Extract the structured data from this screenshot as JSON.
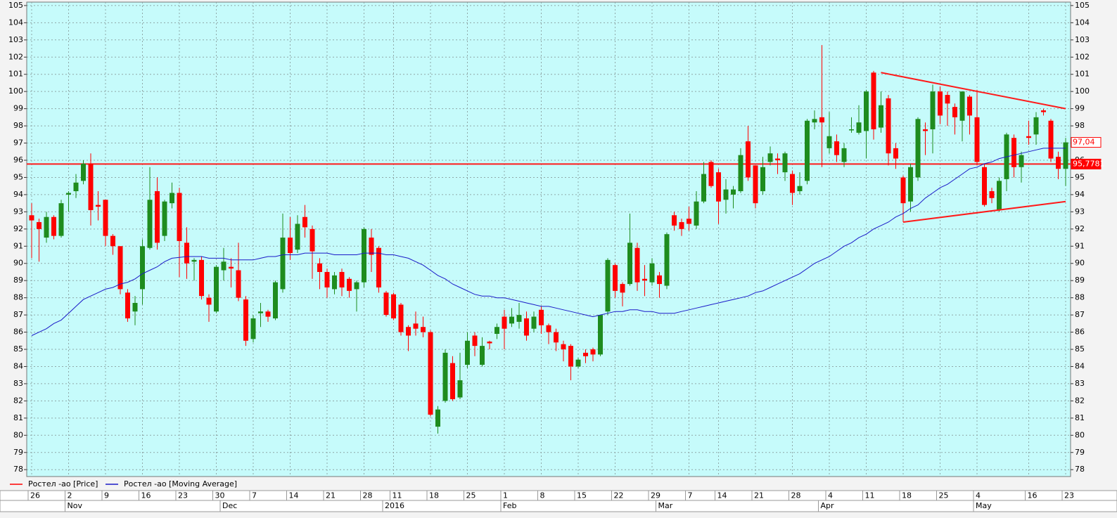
{
  "chart_data": {
    "type": "candlestick",
    "categories": [
      "26",
      null,
      null,
      null,
      null,
      "2",
      null,
      null,
      null,
      null,
      "9",
      null,
      null,
      null,
      null,
      "16",
      null,
      null,
      null,
      null,
      "23",
      null,
      null,
      null,
      null,
      "30",
      null,
      null,
      null,
      null,
      "7",
      null,
      null,
      null,
      null,
      "14",
      null,
      null,
      null,
      null,
      "21",
      null,
      null,
      null,
      null,
      "28",
      null,
      null,
      null,
      "11",
      null,
      null,
      null,
      null,
      "18",
      null,
      null,
      null,
      null,
      "25",
      null,
      null,
      null,
      null,
      "1",
      null,
      null,
      null,
      null,
      "8",
      null,
      null,
      null,
      null,
      "15",
      null,
      null,
      null,
      null,
      "22",
      null,
      null,
      null,
      null,
      "29",
      null,
      null,
      null,
      null,
      "7",
      null,
      null,
      null,
      "14",
      null,
      null,
      null,
      null,
      "21",
      null,
      null,
      null,
      null,
      "28",
      null,
      null,
      null,
      null,
      "4",
      null,
      null,
      null,
      null,
      "11",
      null,
      null,
      null,
      null,
      "18",
      null,
      null,
      null,
      null,
      "25",
      null,
      null,
      null,
      null,
      "4",
      null,
      null,
      null,
      null,
      null,
      null,
      "16",
      null,
      null,
      null,
      null,
      "23"
    ],
    "months": [
      null,
      null,
      null,
      null,
      null,
      "Nov",
      null,
      null,
      null,
      null,
      null,
      null,
      null,
      null,
      null,
      null,
      null,
      null,
      null,
      null,
      null,
      null,
      null,
      null,
      null,
      null,
      "Dec",
      null,
      null,
      null,
      null,
      null,
      null,
      null,
      null,
      null,
      null,
      null,
      null,
      null,
      null,
      null,
      null,
      null,
      null,
      null,
      null,
      null,
      "2016",
      null,
      null,
      null,
      null,
      null,
      null,
      null,
      null,
      null,
      null,
      null,
      null,
      null,
      null,
      null,
      "Feb",
      null,
      null,
      null,
      null,
      null,
      null,
      null,
      null,
      null,
      null,
      null,
      null,
      null,
      null,
      null,
      null,
      null,
      null,
      null,
      null,
      "Mar",
      null,
      null,
      null,
      null,
      null,
      null,
      null,
      null,
      null,
      null,
      null,
      null,
      null,
      null,
      null,
      null,
      null,
      null,
      null,
      null,
      null,
      "Apr",
      null,
      null,
      null,
      null,
      null,
      null,
      null,
      null,
      null,
      null,
      null,
      null,
      null,
      null,
      null,
      null,
      null,
      null,
      null,
      null,
      "May",
      null,
      null,
      null,
      null,
      null,
      null,
      null,
      null,
      null,
      null,
      null,
      null
    ],
    "series": [
      {
        "name": "Ростел -ао [Price]",
        "color": "#ff0000",
        "open": [
          92.8,
          92.4,
          91.5,
          92.7,
          91.6,
          94.0,
          94.2,
          94.8,
          95.8,
          93.4,
          93.7,
          91.6,
          91.0,
          88.3,
          87.2,
          88.5,
          90.9,
          94.2,
          91.6,
          93.5,
          94.1,
          91.2,
          90.1,
          90.2,
          88.0,
          87.2,
          89.6,
          89.8,
          89.6,
          87.9,
          85.6,
          87.1,
          87.2,
          86.8,
          88.5,
          91.5,
          90.8,
          92.7,
          92.0,
          90.0,
          89.5,
          88.5,
          89.5,
          89.1,
          88.5,
          88.9,
          91.5,
          90.9,
          88.3,
          88.2,
          87.6,
          86.3,
          86.5,
          86.3,
          86.0,
          80.5,
          82.0,
          84.2,
          82.2,
          84.1,
          85.8,
          84.1,
          85.45,
          85.9,
          86.9,
          86.5,
          86.6,
          86.8,
          86.2,
          87.3,
          86.4,
          86.0,
          85.3,
          85.2,
          84.0,
          84.8,
          85.0,
          84.7,
          87.2,
          89.9,
          88.8,
          88.8,
          90.9,
          89.1,
          88.9,
          89.3,
          88.7,
          92.8,
          92.4,
          92.6,
          92.2,
          93.6,
          95.9,
          95.3,
          93.7,
          94.0,
          94.2,
          97.1,
          95.7,
          94.2,
          95.9,
          96.1,
          95.3,
          95.2,
          94.2,
          94.8,
          98.2,
          98.5,
          96.7,
          97.1,
          95.9,
          97.75,
          97.6,
          97.7,
          101.1,
          97.9,
          99.6,
          96.7,
          95.0,
          93.6,
          95.0,
          97.8,
          97.8,
          100.0,
          99.8,
          99.1,
          98.3,
          99.7,
          98.5,
          95.6,
          94.2,
          93.1,
          94.9,
          97.3,
          95.6,
          97.4,
          97.5,
          98.9,
          98.3,
          96.2,
          95.5
        ],
        "high": [
          93.5,
          92.6,
          93.0,
          92.8,
          93.7,
          94.2,
          95.2,
          96.0,
          96.4,
          94.2,
          93.7,
          91.7,
          91.0,
          88.5,
          88.1,
          91.4,
          95.6,
          95.0,
          93.7,
          94.7,
          94.4,
          92.1,
          90.3,
          90.4,
          88.2,
          89.9,
          90.9,
          90.3,
          91.2,
          88.1,
          87.0,
          87.7,
          87.3,
          89.0,
          92.9,
          92.7,
          92.8,
          93.4,
          92.2,
          90.3,
          89.7,
          89.5,
          89.7,
          89.2,
          89.0,
          92.1,
          92.0,
          91.0,
          88.4,
          88.3,
          87.7,
          86.4,
          87.2,
          86.9,
          86.1,
          81.7,
          85.0,
          84.6,
          84.8,
          86.0,
          86.0,
          85.7,
          85.5,
          86.5,
          87.3,
          87.4,
          87.7,
          87.2,
          87.2,
          87.5,
          86.5,
          86.2,
          85.5,
          85.3,
          84.5,
          85.0,
          85.1,
          87.0,
          90.3,
          90.0,
          88.9,
          92.9,
          91.2,
          89.9,
          90.3,
          89.5,
          91.8,
          93.0,
          92.6,
          93.3,
          94.2,
          95.9,
          96.0,
          95.5,
          94.9,
          94.5,
          96.7,
          98.0,
          95.7,
          96.2,
          96.8,
          96.4,
          96.5,
          95.4,
          95.3,
          98.4,
          98.9,
          102.7,
          98.8,
          97.5,
          97.0,
          98.5,
          99.2,
          100.1,
          101.2,
          100.0,
          99.8,
          97.0,
          95.1,
          95.8,
          98.5,
          98.2,
          100.4,
          100.3,
          100.0,
          99.3,
          100.0,
          99.8,
          100.1,
          95.8,
          94.4,
          95.0,
          97.6,
          97.5,
          96.5,
          98.3,
          98.8,
          99.0,
          98.4,
          96.5,
          97.3
        ],
        "low": [
          90.3,
          90.1,
          91.2,
          91.4,
          91.5,
          93.0,
          93.8,
          94.6,
          92.2,
          92.5,
          91.0,
          90.5,
          88.2,
          86.6,
          86.4,
          87.6,
          90.8,
          90.8,
          91.3,
          93.2,
          89.2,
          89.1,
          89.0,
          87.9,
          86.6,
          87.1,
          89.0,
          88.6,
          87.8,
          85.2,
          85.4,
          86.3,
          86.6,
          86.7,
          88.3,
          90.2,
          90.6,
          91.5,
          89.1,
          88.5,
          88.0,
          88.2,
          88.1,
          88.0,
          87.2,
          88.6,
          89.5,
          88.3,
          86.9,
          86.7,
          85.8,
          84.9,
          85.8,
          85.7,
          81.1,
          80.1,
          81.9,
          82.0,
          82.1,
          83.9,
          84.6,
          84.0,
          85.0,
          85.6,
          85.0,
          86.3,
          86.2,
          85.5,
          86.0,
          85.9,
          85.3,
          84.9,
          84.3,
          83.2,
          83.9,
          84.2,
          84.3,
          84.6,
          87.0,
          88.0,
          87.5,
          88.7,
          88.4,
          88.1,
          88.7,
          88.0,
          88.5,
          91.9,
          91.6,
          91.9,
          92.0,
          93.5,
          94.4,
          92.3,
          92.9,
          93.2,
          94.1,
          94.8,
          93.2,
          94.0,
          95.7,
          95.2,
          94.8,
          93.4,
          94.0,
          94.6,
          97.8,
          95.6,
          96.4,
          95.9,
          95.6,
          97.6,
          97.5,
          96.1,
          97.2,
          97.6,
          95.7,
          95.5,
          92.4,
          93.0,
          94.8,
          96.3,
          96.4,
          98.1,
          98.0,
          97.5,
          97.1,
          97.5,
          95.7,
          93.3,
          93.5,
          93.0,
          94.2,
          95.0,
          94.7,
          96.9,
          96.9,
          98.6,
          95.9,
          94.9,
          94.5
        ],
        "close": [
          92.5,
          92.0,
          92.7,
          91.6,
          93.5,
          94.1,
          94.7,
          95.8,
          93.1,
          93.3,
          91.6,
          91.0,
          88.5,
          86.8,
          87.7,
          91.0,
          93.7,
          91.2,
          93.6,
          94.1,
          91.3,
          90.0,
          90.2,
          88.1,
          87.6,
          89.8,
          90.1,
          89.7,
          88.0,
          85.5,
          86.8,
          87.2,
          86.9,
          88.9,
          91.5,
          90.6,
          92.3,
          92.1,
          90.7,
          89.5,
          88.6,
          89.3,
          88.6,
          88.4,
          88.9,
          92.0,
          90.5,
          88.6,
          87.0,
          86.8,
          86.0,
          85.8,
          86.2,
          86.0,
          81.2,
          81.5,
          84.8,
          82.1,
          83.2,
          85.5,
          85.2,
          85.2,
          85.35,
          86.3,
          86.2,
          86.9,
          87.0,
          85.8,
          86.9,
          86.4,
          86.0,
          85.4,
          85.0,
          84.0,
          84.4,
          84.6,
          84.7,
          87.0,
          90.2,
          88.4,
          88.3,
          91.2,
          88.9,
          89.0,
          90.0,
          88.8,
          91.7,
          92.2,
          92.0,
          92.3,
          93.6,
          95.2,
          94.5,
          93.6,
          94.3,
          94.3,
          96.3,
          95.0,
          93.5,
          95.6,
          96.4,
          96.0,
          96.4,
          94.1,
          94.5,
          98.3,
          98.4,
          98.2,
          97.4,
          96.3,
          96.7,
          97.8,
          98.2,
          100.0,
          97.8,
          99.2,
          96.4,
          96.1,
          93.5,
          95.6,
          98.4,
          97.7,
          100.0,
          98.6,
          99.3,
          98.5,
          100.0,
          98.6,
          95.9,
          93.4,
          93.8,
          94.8,
          97.5,
          95.6,
          96.3,
          97.3,
          98.5,
          98.8,
          96.1,
          95.5,
          97.04
        ]
      },
      {
        "name": "Ростел -ао [Moving Average]",
        "color": "#1a1ac8",
        "values": [
          85.8,
          86.0,
          86.2,
          86.5,
          86.7,
          87.1,
          87.5,
          87.9,
          88.1,
          88.3,
          88.5,
          88.6,
          88.8,
          88.9,
          89.1,
          89.4,
          89.6,
          89.8,
          90.1,
          90.3,
          90.35,
          90.4,
          90.4,
          90.4,
          90.3,
          90.3,
          90.3,
          90.2,
          90.2,
          90.2,
          90.2,
          90.3,
          90.4,
          90.4,
          90.5,
          90.5,
          90.5,
          90.6,
          90.6,
          90.6,
          90.6,
          90.5,
          90.5,
          90.5,
          90.5,
          90.6,
          90.6,
          90.6,
          90.5,
          90.5,
          90.4,
          90.3,
          90.1,
          89.9,
          89.6,
          89.3,
          89.1,
          88.8,
          88.6,
          88.4,
          88.2,
          88.1,
          88.1,
          88.0,
          88.0,
          87.9,
          87.8,
          87.7,
          87.6,
          87.5,
          87.5,
          87.4,
          87.3,
          87.2,
          87.1,
          87.0,
          86.9,
          87.0,
          87.1,
          87.2,
          87.2,
          87.3,
          87.3,
          87.2,
          87.2,
          87.1,
          87.1,
          87.1,
          87.2,
          87.3,
          87.4,
          87.5,
          87.6,
          87.7,
          87.8,
          87.9,
          88.0,
          88.1,
          88.3,
          88.4,
          88.6,
          88.8,
          89.0,
          89.2,
          89.4,
          89.7,
          90.0,
          90.2,
          90.4,
          90.7,
          91.0,
          91.2,
          91.5,
          91.7,
          92.0,
          92.2,
          92.4,
          92.7,
          92.9,
          93.2,
          93.4,
          93.8,
          94.1,
          94.4,
          94.6,
          94.9,
          95.2,
          95.5,
          95.6,
          95.8,
          95.9,
          96.1,
          96.2,
          96.3,
          96.4,
          96.5,
          96.6,
          96.7,
          96.7,
          96.7,
          96.7
        ]
      }
    ],
    "up_color": "#1e8c1e",
    "down_color": "#ff0000",
    "ylim": [
      77.6,
      105.2
    ],
    "yticks": [
      78,
      79,
      80,
      81,
      82,
      83,
      84,
      85,
      86,
      87,
      88,
      89,
      90,
      91,
      92,
      93,
      94,
      95,
      96,
      97,
      98,
      99,
      100,
      101,
      102,
      103,
      104,
      105
    ],
    "grid": true,
    "hline": {
      "value": 95.7781,
      "label": "95,7781"
    },
    "last_price": {
      "value": 97.04,
      "label": "97,04"
    },
    "trendline_color": "#ff1a1a",
    "trendlines": [
      {
        "start": 115,
        "start_value": 101.1,
        "end": 140,
        "end_value": 99.0
      },
      {
        "start": 118,
        "start_value": 92.4,
        "end": 140,
        "end_value": 93.6
      }
    ]
  }
}
